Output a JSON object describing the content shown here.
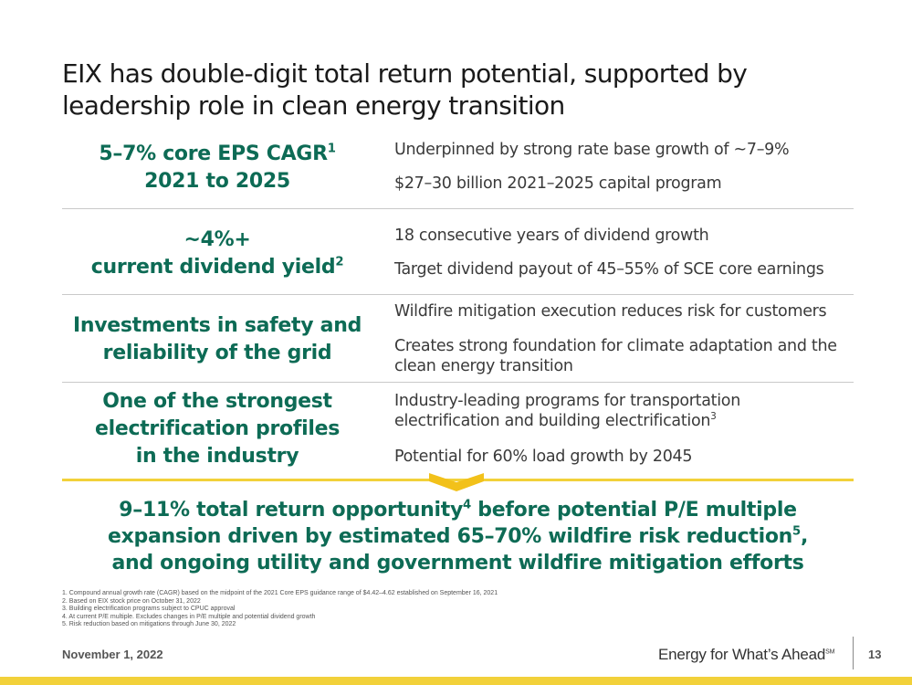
{
  "title": "EIX has double-digit total return potential, supported by leadership role in clean energy transition",
  "rows": [
    {
      "headline_lines": [
        "5–7% core EPS CAGR",
        "2021 to 2025"
      ],
      "headline_sup": "1",
      "points": [
        {
          "text": "Underpinned by strong rate base growth of ~7–9%"
        },
        {
          "text": "$27–30 billion 2021–2025 capital program"
        }
      ]
    },
    {
      "headline_lines": [
        "~4%+",
        "current dividend yield"
      ],
      "headline_sup": "2",
      "points": [
        {
          "text": "18 consecutive years of dividend growth"
        },
        {
          "text": "Target dividend payout of 45–55% of SCE core earnings"
        }
      ]
    },
    {
      "headline_lines": [
        "Investments in safety and",
        "reliability of the grid"
      ],
      "points": [
        {
          "text": "Wildfire mitigation execution reduces risk for customers"
        },
        {
          "text": "Creates strong foundation for climate adaptation and the clean energy transition"
        }
      ]
    },
    {
      "headline_lines": [
        "One of the strongest",
        "electrification profiles",
        "in the industry"
      ],
      "points": [
        {
          "text": "Industry-leading programs for transportation electrification and building electrification",
          "sup": "3"
        },
        {
          "text": "Potential for 60% load growth by 2045"
        }
      ]
    }
  ],
  "summary": {
    "line1": "9–11% total return opportunity",
    "sup4": "4",
    "line1b": " before potential P/E multiple",
    "line2": "expansion driven by estimated 65–70% wildfire risk reduction",
    "sup5": "5",
    "line2b": ",",
    "line3": "and ongoing utility and government wildfire mitigation efforts"
  },
  "footnotes": [
    "1.  Compound annual growth rate (CAGR) based on the midpoint of the 2021 Core EPS guidance range of $4.42–4.62 established on September 16, 2021",
    "2.  Based on EIX stock price on October 31, 2022",
    "3.  Building electrification programs subject to CPUC approval",
    "4.  At current P/E multiple. Excludes changes in P/E multiple and potential dividend growth",
    "5.  Risk reduction based on mitigations through June 30, 2022"
  ],
  "footer": {
    "date": "November 1, 2022",
    "brand": "Energy for What’s Ahead",
    "brand_mark": "SM",
    "page": "13"
  },
  "colors": {
    "accent_green": "#0d6b55",
    "accent_yellow": "#f2d13a"
  }
}
